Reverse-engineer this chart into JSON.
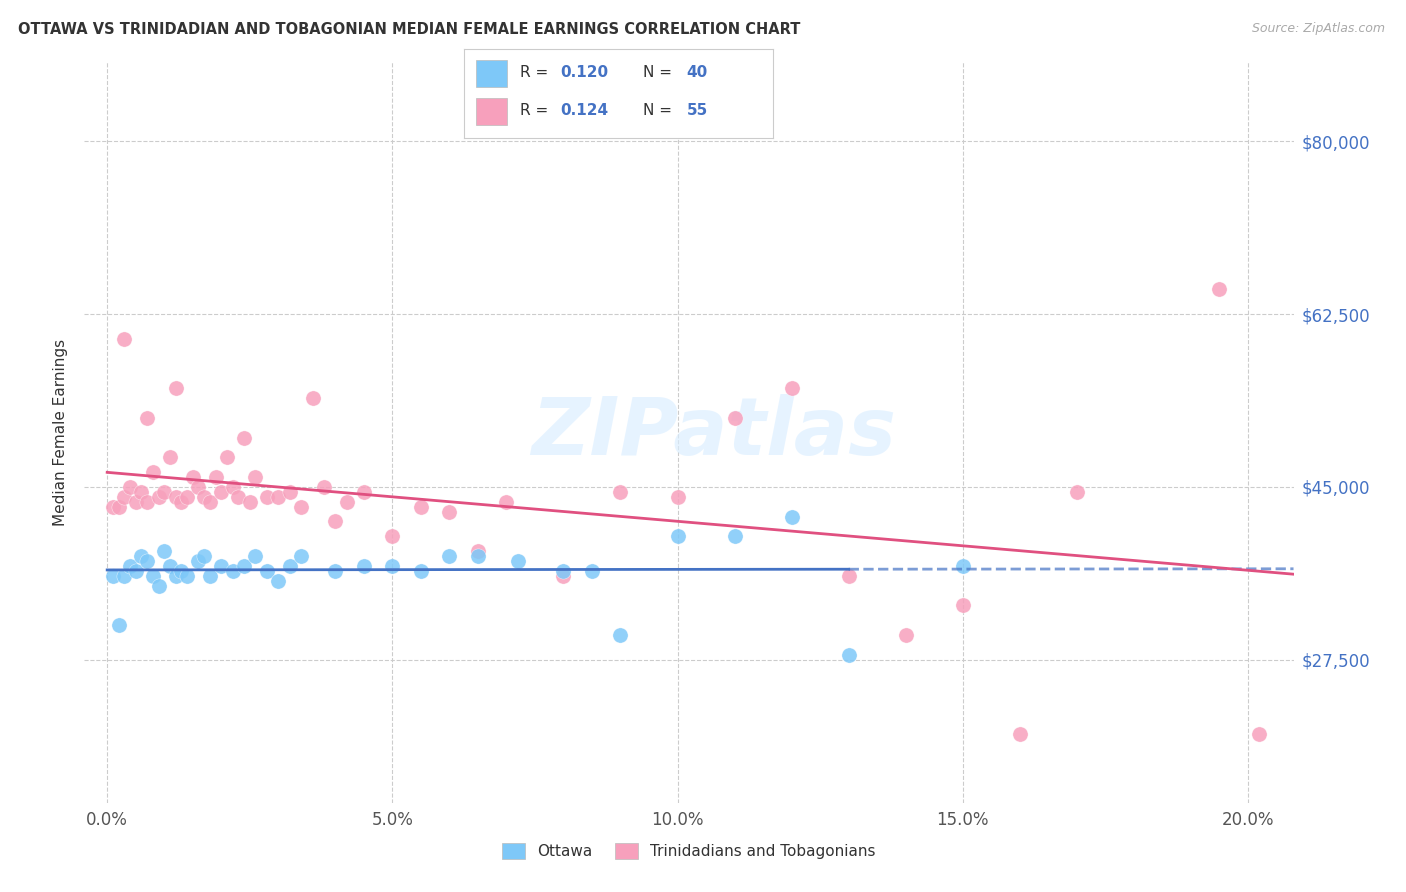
{
  "title": "OTTAWA VS TRINIDADIAN AND TOBAGONIAN MEDIAN FEMALE EARNINGS CORRELATION CHART",
  "source": "Source: ZipAtlas.com",
  "ylabel": "Median Female Earnings",
  "xlabel_ticks": [
    "0.0%",
    "5.0%",
    "10.0%",
    "15.0%",
    "20.0%"
  ],
  "xlabel_vals": [
    0.0,
    0.05,
    0.1,
    0.15,
    0.2
  ],
  "ytick_labels": [
    "$27,500",
    "$45,000",
    "$62,500",
    "$80,000"
  ],
  "ytick_vals": [
    27500,
    45000,
    62500,
    80000
  ],
  "ylim": [
    13000,
    88000
  ],
  "xlim": [
    -0.004,
    0.208
  ],
  "ottawa_R": 0.12,
  "ottawa_N": 40,
  "tnt_R": 0.124,
  "tnt_N": 55,
  "ottawa_color": "#7ec8f8",
  "tnt_color": "#f7a0bc",
  "trend_blue": "#4472c4",
  "trend_pink": "#e05080",
  "axis_label_color": "#4472c4",
  "legend_label_ottawa": "Ottawa",
  "legend_label_tnt": "Trinidadians and Tobagonians",
  "watermark": "ZIPatlas",
  "background_color": "#ffffff",
  "grid_color": "#cccccc",
  "title_color": "#333333",
  "source_color": "#aaaaaa",
  "ottawa_x": [
    0.001,
    0.002,
    0.003,
    0.004,
    0.005,
    0.006,
    0.007,
    0.008,
    0.009,
    0.01,
    0.011,
    0.012,
    0.013,
    0.014,
    0.016,
    0.017,
    0.018,
    0.02,
    0.022,
    0.024,
    0.026,
    0.028,
    0.03,
    0.032,
    0.034,
    0.04,
    0.045,
    0.05,
    0.055,
    0.06,
    0.065,
    0.072,
    0.08,
    0.085,
    0.09,
    0.1,
    0.11,
    0.12,
    0.13,
    0.15
  ],
  "ottawa_y": [
    36000,
    31000,
    36000,
    37000,
    36500,
    38000,
    37500,
    36000,
    35000,
    38500,
    37000,
    36000,
    36500,
    36000,
    37500,
    38000,
    36000,
    37000,
    36500,
    37000,
    38000,
    36500,
    35500,
    37000,
    38000,
    36500,
    37000,
    37000,
    36500,
    38000,
    38000,
    37500,
    36500,
    36500,
    30000,
    40000,
    40000,
    42000,
    28000,
    37000
  ],
  "tnt_x": [
    0.001,
    0.002,
    0.003,
    0.003,
    0.004,
    0.005,
    0.006,
    0.007,
    0.007,
    0.008,
    0.009,
    0.01,
    0.011,
    0.012,
    0.012,
    0.013,
    0.014,
    0.015,
    0.016,
    0.017,
    0.018,
    0.019,
    0.02,
    0.021,
    0.022,
    0.023,
    0.024,
    0.025,
    0.026,
    0.028,
    0.03,
    0.032,
    0.034,
    0.036,
    0.038,
    0.04,
    0.042,
    0.045,
    0.05,
    0.055,
    0.06,
    0.065,
    0.07,
    0.08,
    0.09,
    0.1,
    0.11,
    0.12,
    0.13,
    0.14,
    0.15,
    0.16,
    0.17,
    0.195,
    0.202
  ],
  "tnt_y": [
    43000,
    43000,
    44000,
    60000,
    45000,
    43500,
    44500,
    43500,
    52000,
    46500,
    44000,
    44500,
    48000,
    44000,
    55000,
    43500,
    44000,
    46000,
    45000,
    44000,
    43500,
    46000,
    44500,
    48000,
    45000,
    44000,
    50000,
    43500,
    46000,
    44000,
    44000,
    44500,
    43000,
    54000,
    45000,
    41500,
    43500,
    44500,
    40000,
    43000,
    42500,
    38500,
    43500,
    36000,
    44500,
    44000,
    52000,
    55000,
    36000,
    30000,
    33000,
    20000,
    44500,
    65000,
    20000
  ]
}
